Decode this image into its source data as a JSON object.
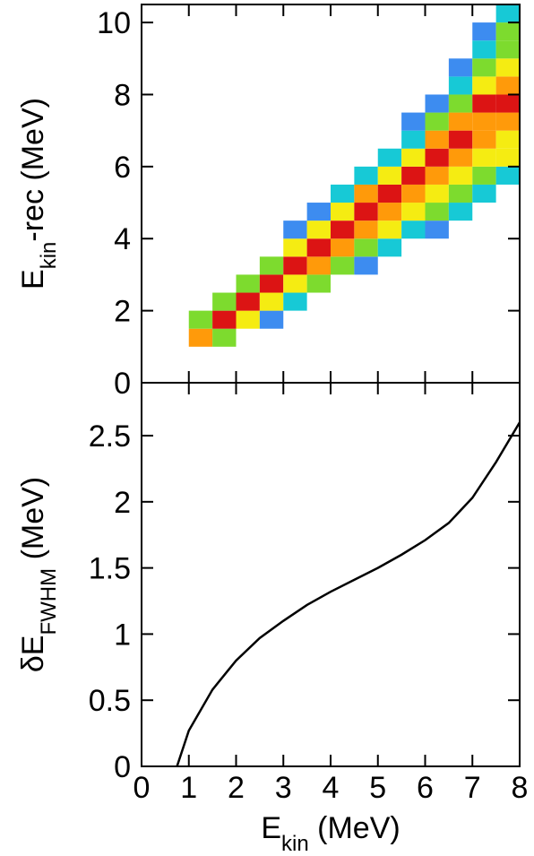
{
  "chart_data": [
    {
      "type": "heatmap",
      "ylabel": {
        "main": "E",
        "sub": "kin",
        "rest": "-rec (MeV)"
      },
      "xlim": [
        0,
        8
      ],
      "xticks": [
        0,
        1,
        2,
        3,
        4,
        5,
        6,
        7,
        8
      ],
      "show_xtick_labels": false,
      "ylim": [
        0,
        10.5
      ],
      "yticks": [
        0,
        2,
        4,
        6,
        8,
        10
      ],
      "colors": [
        "#3d8cf0",
        "#17c9d6",
        "#7ddb2e",
        "#f5ec12",
        "#ff9a0a",
        "#dc1414"
      ],
      "x_bins": [
        1.0,
        1.5,
        2.0,
        2.5,
        3.0,
        3.5,
        4.0,
        4.5,
        5.0,
        5.5,
        6.0,
        6.5,
        7.0,
        7.5,
        8.0
      ],
      "y_bins": [
        1.0,
        1.5,
        2.0,
        2.5,
        3.0,
        3.5,
        4.0,
        4.5,
        5.0,
        5.5,
        6.0,
        6.5,
        7.0,
        7.5,
        8.0,
        8.5,
        9.0,
        9.5,
        10.0,
        10.5
      ],
      "z": [
        [
          5,
          3,
          null,
          null,
          null,
          null,
          null,
          null,
          null,
          null,
          null,
          null,
          null,
          null,
          null,
          null,
          null,
          null,
          null
        ],
        [
          3,
          6,
          3,
          null,
          null,
          null,
          null,
          null,
          null,
          null,
          null,
          null,
          null,
          null,
          null,
          null,
          null,
          null,
          null
        ],
        [
          null,
          4,
          6,
          3,
          null,
          null,
          null,
          null,
          null,
          null,
          null,
          null,
          null,
          null,
          null,
          null,
          null,
          null,
          null
        ],
        [
          null,
          1,
          4,
          6,
          3,
          null,
          null,
          null,
          null,
          null,
          null,
          null,
          null,
          null,
          null,
          null,
          null,
          null,
          null
        ],
        [
          null,
          null,
          2,
          4,
          6,
          4,
          1,
          null,
          null,
          null,
          null,
          null,
          null,
          null,
          null,
          null,
          null,
          null,
          null
        ],
        [
          null,
          null,
          null,
          3,
          5,
          6,
          4,
          1,
          null,
          null,
          null,
          null,
          null,
          null,
          null,
          null,
          null,
          null,
          null
        ],
        [
          null,
          null,
          null,
          null,
          3,
          5,
          6,
          4,
          2,
          null,
          null,
          null,
          null,
          null,
          null,
          null,
          null,
          null,
          null
        ],
        [
          null,
          null,
          null,
          null,
          1,
          3,
          5,
          6,
          5,
          2,
          null,
          null,
          null,
          null,
          null,
          null,
          null,
          null,
          null
        ],
        [
          null,
          null,
          null,
          null,
          null,
          2,
          4,
          5,
          6,
          4,
          2,
          null,
          null,
          null,
          null,
          null,
          null,
          null,
          null
        ],
        [
          null,
          null,
          null,
          null,
          null,
          null,
          2,
          4,
          5,
          6,
          4,
          2,
          1,
          null,
          null,
          null,
          null,
          null,
          null
        ],
        [
          null,
          null,
          null,
          null,
          null,
          null,
          1,
          3,
          4,
          5,
          6,
          5,
          3,
          1,
          null,
          null,
          null,
          null,
          null
        ],
        [
          null,
          null,
          null,
          null,
          null,
          null,
          null,
          2,
          3,
          4,
          5,
          6,
          5,
          3,
          2,
          1,
          null,
          null,
          null
        ],
        [
          null,
          null,
          null,
          null,
          null,
          null,
          null,
          null,
          2,
          3,
          4,
          5,
          5,
          6,
          4,
          3,
          2,
          1,
          null
        ],
        [
          null,
          null,
          null,
          null,
          null,
          null,
          null,
          null,
          null,
          2,
          4,
          4,
          5,
          6,
          5,
          4,
          3,
          3,
          2
        ]
      ]
    },
    {
      "type": "line",
      "xlabel": {
        "main": "E",
        "sub": "kin",
        "rest": " (MeV)"
      },
      "ylabel": {
        "main": "δE",
        "sub": "FWHM",
        "rest": " (MeV)"
      },
      "xlim": [
        0,
        8
      ],
      "xticks": [
        0,
        1,
        2,
        3,
        4,
        5,
        6,
        7,
        8
      ],
      "show_xtick_labels": true,
      "ylim": [
        0,
        2.9
      ],
      "yticks": [
        0,
        0.5,
        1,
        1.5,
        2,
        2.5
      ],
      "color": "#000000",
      "x": [
        0.75,
        1,
        1.5,
        2,
        2.5,
        3,
        3.5,
        4,
        4.5,
        5,
        5.5,
        6,
        6.5,
        7,
        7.5,
        8
      ],
      "values": [
        0,
        0.27,
        0.58,
        0.8,
        0.97,
        1.1,
        1.22,
        1.32,
        1.41,
        1.5,
        1.6,
        1.71,
        1.84,
        2.03,
        2.3,
        2.6
      ]
    }
  ]
}
